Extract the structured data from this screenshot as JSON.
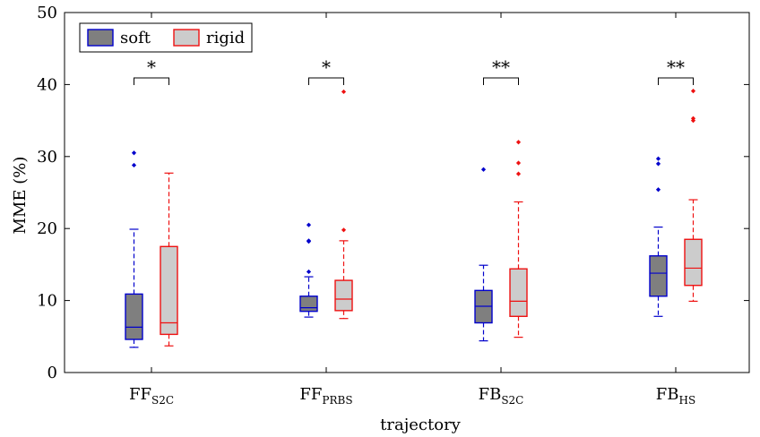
{
  "chart_data": {
    "type": "box",
    "xlabel": "trajectory",
    "ylabel": "MME (%)",
    "ylim": [
      0,
      50
    ],
    "yticks": [
      0,
      10,
      20,
      30,
      40,
      50
    ],
    "grid": false,
    "legend_position": "top-left",
    "categories": [
      {
        "base": "FF",
        "sub": "S2C"
      },
      {
        "base": "FF",
        "sub": "PRBS"
      },
      {
        "base": "FB",
        "sub": "S2C"
      },
      {
        "base": "FB",
        "sub": "HS"
      }
    ],
    "significance": [
      "*",
      "*",
      "**",
      "**"
    ],
    "series": [
      {
        "name": "soft",
        "edge_color": "#0000cc",
        "fill_color": "#7f7f7f",
        "median_color": "#0000cc",
        "boxes": [
          {
            "whisker_low": 3.5,
            "q1": 4.6,
            "median": 6.3,
            "q3": 10.9,
            "whisker_high": 19.9,
            "outliers": [
              28.8,
              30.5
            ]
          },
          {
            "whisker_low": 7.7,
            "q1": 8.5,
            "median": 9.0,
            "q3": 10.6,
            "whisker_high": 13.3,
            "outliers": [
              14.0,
              18.2,
              18.3,
              20.5
            ]
          },
          {
            "whisker_low": 4.4,
            "q1": 6.9,
            "median": 9.2,
            "q3": 11.4,
            "whisker_high": 14.9,
            "outliers": [
              28.2
            ]
          },
          {
            "whisker_low": 7.8,
            "q1": 10.6,
            "median": 13.8,
            "q3": 16.2,
            "whisker_high": 20.2,
            "outliers": [
              25.4,
              29.0,
              29.7
            ]
          }
        ]
      },
      {
        "name": "rigid",
        "edge_color": "#ee1111",
        "fill_color": "#cccccc",
        "median_color": "#ee1111",
        "boxes": [
          {
            "whisker_low": 3.7,
            "q1": 5.3,
            "median": 6.9,
            "q3": 17.5,
            "whisker_high": 27.7,
            "outliers": []
          },
          {
            "whisker_low": 7.5,
            "q1": 8.6,
            "median": 10.2,
            "q3": 12.8,
            "whisker_high": 18.3,
            "outliers": [
              19.8,
              39.0
            ]
          },
          {
            "whisker_low": 4.9,
            "q1": 7.8,
            "median": 9.9,
            "q3": 14.4,
            "whisker_high": 23.7,
            "outliers": [
              27.6,
              29.1,
              32.0
            ]
          },
          {
            "whisker_low": 9.9,
            "q1": 12.1,
            "median": 14.5,
            "q3": 18.5,
            "whisker_high": 24.0,
            "outliers": [
              35.0,
              35.3,
              39.1
            ]
          }
        ]
      }
    ]
  }
}
